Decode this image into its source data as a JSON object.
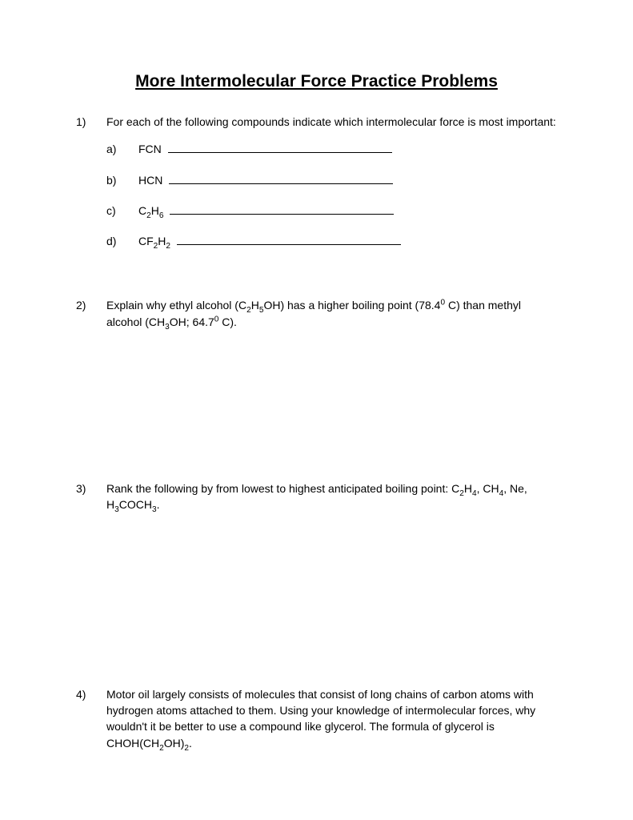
{
  "title": "More Intermolecular Force Practice Problems",
  "problems": [
    {
      "number": "1)",
      "text_html": "For each of the following compounds indicate which intermolecular force is most important:",
      "subs": [
        {
          "letter": "a)",
          "content_html": "FCN"
        },
        {
          "letter": "b)",
          "content_html": "HCN"
        },
        {
          "letter": "c)",
          "content_html": "C<sub>2</sub>H<sub>6</sub>"
        },
        {
          "letter": "d)",
          "content_html": "CF<sub>2</sub>H<sub>2</sub>"
        }
      ]
    },
    {
      "number": "2)",
      "text_html": "Explain why ethyl alcohol (C<sub>2</sub>H<sub>5</sub>OH) has a higher boiling point (78.4<sup>0</sup> C) than methyl alcohol (CH<sub>3</sub>OH;  64.7<sup>0</sup> C)."
    },
    {
      "number": "3)",
      "text_html": "Rank the following by from lowest to highest anticipated boiling point: C<sub>2</sub>H<sub>4</sub>, CH<sub>4</sub>, Ne, H<sub>3</sub>COCH<sub>3</sub>."
    },
    {
      "number": "4)",
      "text_html": "Motor oil largely consists of molecules that consist of long chains of carbon atoms with hydrogen atoms attached to them.  Using your knowledge of intermolecular forces, why wouldn't it be better to use a compound like glycerol.  The formula of glycerol is CHOH(CH<sub>2</sub>OH)<sub>2</sub>."
    }
  ]
}
